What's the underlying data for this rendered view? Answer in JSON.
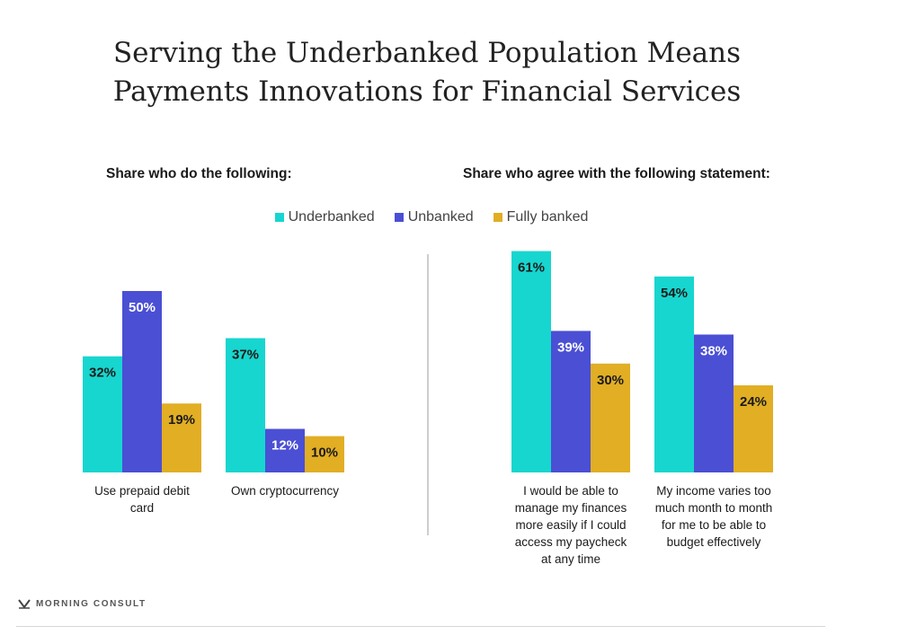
{
  "title_lines": [
    "Serving the Underbanked Population Means",
    "Payments Innovations for Financial Services"
  ],
  "colors": {
    "Underbanked": "#17d6cf",
    "Unbanked": "#4a4fd4",
    "Fully banked": "#e1ae24"
  },
  "legend": [
    "Underbanked",
    "Unbanked",
    "Fully banked"
  ],
  "footer": {
    "brand": "MORNING CONSULT",
    "logo_icon": "morning-consult-logo-icon"
  },
  "chart_data": [
    {
      "type": "bar",
      "subtitle": "Share who do the following:",
      "categories": [
        [
          "Use prepaid debit",
          "card"
        ],
        [
          "Own cryptocurrency"
        ]
      ],
      "series": [
        {
          "name": "Underbanked",
          "values": [
            32,
            37
          ]
        },
        {
          "name": "Unbanked",
          "values": [
            50,
            12
          ]
        },
        {
          "name": "Fully banked",
          "values": [
            19,
            10
          ]
        }
      ],
      "value_suffix": "%",
      "grid": false
    },
    {
      "type": "bar",
      "subtitle": "Share who agree with the following statement:",
      "categories": [
        [
          "I would be able to",
          "manage my finances",
          "more easily if I could",
          "access my paycheck",
          "at any time"
        ],
        [
          "My income varies too",
          "much month to month",
          "for me to be able to",
          "budget effectively"
        ]
      ],
      "series": [
        {
          "name": "Underbanked",
          "values": [
            61,
            54
          ]
        },
        {
          "name": "Unbanked",
          "values": [
            39,
            38
          ]
        },
        {
          "name": "Fully banked",
          "values": [
            30,
            24
          ]
        }
      ],
      "value_suffix": "%",
      "grid": false
    }
  ]
}
